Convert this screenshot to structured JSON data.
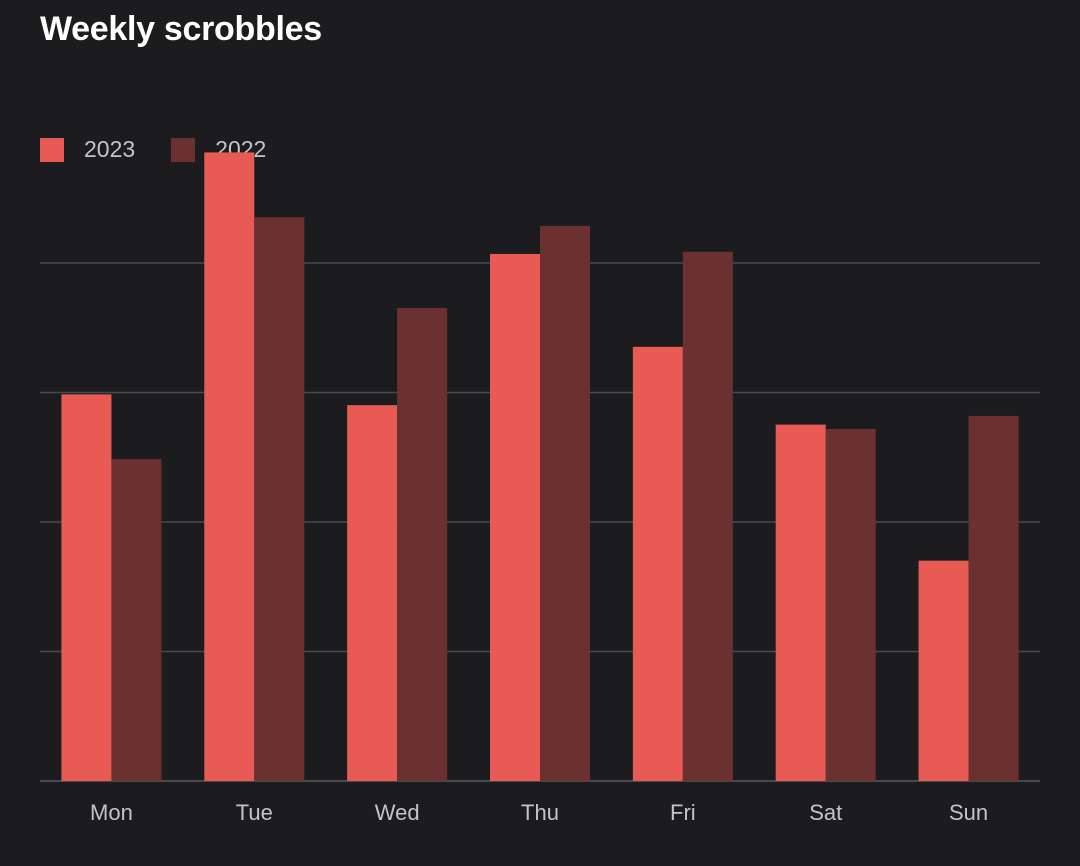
{
  "header": {
    "title": "Weekly scrobbles"
  },
  "colors": {
    "series_2023": "#e85b55",
    "series_2022": "#6b3131",
    "grid": "#4a4a4e",
    "background": "#1c1c1e"
  },
  "chart_data": {
    "type": "bar",
    "title": "Weekly scrobbles",
    "categories": [
      "Mon",
      "Tue",
      "Wed",
      "Thu",
      "Fri",
      "Sat",
      "Sun"
    ],
    "series": [
      {
        "name": "2023",
        "values": [
          358,
          582,
          348,
          488,
          402,
          330,
          204
        ]
      },
      {
        "name": "2022",
        "values": [
          298,
          522,
          438,
          514,
          490,
          326,
          338
        ]
      }
    ],
    "ylim": [
      0,
      600
    ],
    "ytick_labels": "none",
    "grid": true,
    "legend": "top-left"
  }
}
